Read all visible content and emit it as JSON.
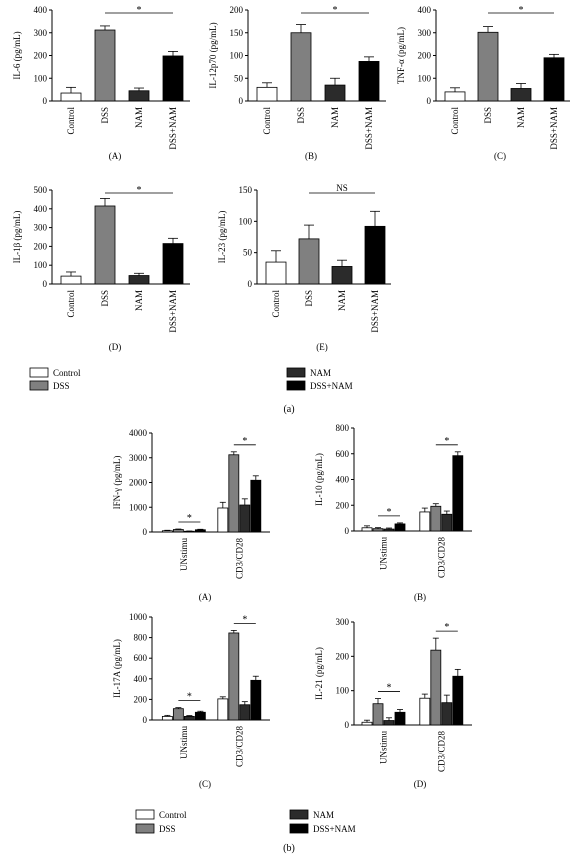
{
  "legend_a": [
    {
      "label": "Control",
      "color": "#ffffff"
    },
    {
      "label": "DSS",
      "color": "#808080"
    },
    {
      "label": "NAM",
      "color": "#2b2b2b"
    },
    {
      "label": "DSS+NAM",
      "color": "#000000"
    }
  ],
  "legend_b": [
    {
      "label": "Control",
      "color": "#ffffff"
    },
    {
      "label": "DSS",
      "color": "#808080"
    },
    {
      "label": "NAM",
      "color": "#2b2b2b"
    },
    {
      "label": "DSS+NAM",
      "color": "#000000"
    }
  ],
  "panel_labels": {
    "a": "(a)",
    "b": "(b)"
  },
  "chart_data": [
    {
      "type": "bar",
      "panel": "(A)",
      "ylabel": "IL-6 (pg/mL)",
      "ylim": [
        0,
        400
      ],
      "yticks": [
        0,
        100,
        200,
        300,
        400
      ],
      "categories": [
        "Control",
        "DSS",
        "NAM",
        "DSS+NAM"
      ],
      "values": [
        35,
        312,
        45,
        198
      ],
      "errors": [
        25,
        18,
        12,
        20
      ],
      "annotation": "*",
      "annotation_span": [
        "DSS",
        "DSS+NAM"
      ]
    },
    {
      "type": "bar",
      "panel": "(B)",
      "ylabel": "IL-12p70 (pg/mL)",
      "ylim": [
        0,
        200
      ],
      "yticks": [
        0,
        50,
        100,
        150,
        200
      ],
      "categories": [
        "Control",
        "DSS",
        "NAM",
        "DSS+NAM"
      ],
      "values": [
        30,
        150,
        35,
        87
      ],
      "errors": [
        10,
        18,
        15,
        10
      ],
      "annotation": "*",
      "annotation_span": [
        "DSS",
        "DSS+NAM"
      ]
    },
    {
      "type": "bar",
      "panel": "(C)",
      "ylabel": "TNF-α (pg/mL)",
      "ylim": [
        0,
        400
      ],
      "yticks": [
        0,
        100,
        200,
        300,
        400
      ],
      "categories": [
        "Control",
        "DSS",
        "NAM",
        "DSS+NAM"
      ],
      "values": [
        40,
        302,
        55,
        190
      ],
      "errors": [
        18,
        25,
        22,
        15
      ],
      "annotation": "*",
      "annotation_span": [
        "DSS",
        "DSS+NAM"
      ]
    },
    {
      "type": "bar",
      "panel": "(D)",
      "ylabel": "IL-1β (pg/mL)",
      "ylim": [
        0,
        500
      ],
      "yticks": [
        0,
        100,
        200,
        300,
        400,
        500
      ],
      "categories": [
        "Control",
        "DSS",
        "NAM",
        "DSS+NAM"
      ],
      "values": [
        42,
        415,
        45,
        215
      ],
      "errors": [
        22,
        40,
        12,
        28
      ],
      "annotation": "*",
      "annotation_span": [
        "DSS",
        "DSS+NAM"
      ]
    },
    {
      "type": "bar",
      "panel": "(E)",
      "ylabel": "IL-23 (pg/mL)",
      "ylim": [
        0,
        150
      ],
      "yticks": [
        0,
        50,
        100,
        150
      ],
      "categories": [
        "Control",
        "DSS",
        "NAM",
        "DSS+NAM"
      ],
      "values": [
        35,
        72,
        28,
        92
      ],
      "errors": [
        18,
        22,
        10,
        24
      ],
      "annotation": "NS",
      "annotation_span": [
        "DSS",
        "DSS+NAM"
      ]
    },
    {
      "type": "bar",
      "panel": "(A)",
      "ylabel": "IFN-γ (pg/mL)",
      "ylim": [
        0,
        4000
      ],
      "yticks": [
        0,
        1000,
        2000,
        3000,
        4000
      ],
      "categories": [
        "UNstimu",
        "CD3/CD28"
      ],
      "series": [
        {
          "name": "Control",
          "values": [
            50,
            970
          ],
          "errors": [
            20,
            230
          ]
        },
        {
          "name": "DSS",
          "values": [
            100,
            3120
          ],
          "errors": [
            20,
            120
          ]
        },
        {
          "name": "NAM",
          "values": [
            30,
            1090
          ],
          "errors": [
            10,
            250
          ]
        },
        {
          "name": "DSS+NAM",
          "values": [
            90,
            2090
          ],
          "errors": [
            20,
            180
          ]
        }
      ],
      "annotations": [
        {
          "text": "*",
          "group": "UNstimu"
        },
        {
          "text": "*",
          "group": "CD3/CD28"
        }
      ]
    },
    {
      "type": "bar",
      "panel": "(B)",
      "ylabel": "IL-10 (pg/mL)",
      "ylim": [
        0,
        800
      ],
      "yticks": [
        0,
        200,
        400,
        600,
        800
      ],
      "categories": [
        "UNstimu",
        "CD3/CD28"
      ],
      "series": [
        {
          "name": "Control",
          "values": [
            25,
            148
          ],
          "errors": [
            15,
            30
          ]
        },
        {
          "name": "DSS",
          "values": [
            18,
            192
          ],
          "errors": [
            8,
            20
          ]
        },
        {
          "name": "NAM",
          "values": [
            15,
            130
          ],
          "errors": [
            8,
            25
          ]
        },
        {
          "name": "DSS+NAM",
          "values": [
            55,
            585
          ],
          "errors": [
            8,
            30
          ]
        }
      ],
      "annotations": [
        {
          "text": "*",
          "group": "UNstimu"
        },
        {
          "text": "*",
          "group": "CD3/CD28"
        }
      ]
    },
    {
      "type": "bar",
      "panel": "(C)",
      "ylabel": "IL-17A (pg/mL)",
      "ylim": [
        0,
        1000
      ],
      "yticks": [
        0,
        200,
        400,
        600,
        800,
        1000
      ],
      "categories": [
        "UNstimu",
        "CD3/CD28"
      ],
      "series": [
        {
          "name": "Control",
          "values": [
            35,
            205
          ],
          "errors": [
            10,
            20
          ]
        },
        {
          "name": "DSS",
          "values": [
            110,
            845
          ],
          "errors": [
            10,
            25
          ]
        },
        {
          "name": "NAM",
          "values": [
            35,
            148
          ],
          "errors": [
            8,
            30
          ]
        },
        {
          "name": "DSS+NAM",
          "values": [
            75,
            385
          ],
          "errors": [
            10,
            40
          ]
        }
      ],
      "annotations": [
        {
          "text": "*",
          "group": "UNstimu"
        },
        {
          "text": "*",
          "group": "CD3/CD28"
        }
      ]
    },
    {
      "type": "bar",
      "panel": "(D)",
      "ylabel": "IL-21 (pg/mL)",
      "ylim": [
        0,
        300
      ],
      "yticks": [
        0,
        100,
        200,
        300
      ],
      "categories": [
        "UNstimu",
        "CD3/CD28"
      ],
      "series": [
        {
          "name": "Control",
          "values": [
            8,
            78
          ],
          "errors": [
            6,
            12
          ]
        },
        {
          "name": "DSS",
          "values": [
            62,
            218
          ],
          "errors": [
            15,
            35
          ]
        },
        {
          "name": "NAM",
          "values": [
            13,
            65
          ],
          "errors": [
            8,
            22
          ]
        },
        {
          "name": "DSS+NAM",
          "values": [
            37,
            142
          ],
          "errors": [
            8,
            20
          ]
        }
      ],
      "annotations": [
        {
          "text": "*",
          "group": "UNstimu"
        },
        {
          "text": "*",
          "group": "CD3/CD28"
        }
      ]
    }
  ]
}
